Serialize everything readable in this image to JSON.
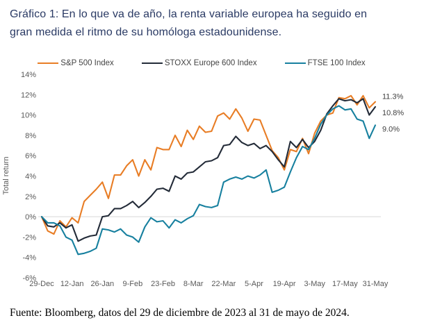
{
  "title_lines": [
    "Gráfico 1: En lo que va de año, la renta variable europea ha seguido en",
    "gran medida el ritmo de su homóloga estadounidense."
  ],
  "footer": "Fuente: Bloomberg, datos del 29 de diciembre de 2023 al 31 de mayo de 2024.",
  "colors": {
    "title_navy": "#2a3a64",
    "axis_text": "#595959",
    "end_label_text": "#3f3f3f",
    "zero_gridline": "#e2e2e2"
  },
  "chart_data": {
    "type": "line",
    "title": "",
    "ylabel": "Total return",
    "xlabel": "",
    "ylim": [
      -6,
      14
    ],
    "yticks": [
      14,
      12,
      10,
      8,
      6,
      4,
      2,
      0,
      -2,
      -4,
      -6
    ],
    "ytick_suffix": "%",
    "x_labels": [
      "29-Dec",
      "12-Jan",
      "26-Jan",
      "9-Feb",
      "23-Feb",
      "8-Mar",
      "22-Mar",
      "5-Apr",
      "19-Apr",
      "3-May",
      "17-May",
      "31-May"
    ],
    "x_span": "daily values from 29-Dec-2023 to 31-May-2024, evenly spaced",
    "grid": "horizontal zero-line only",
    "legend_position": "top",
    "series": [
      {
        "name": "S&P 500 Index",
        "color": "#e87d25",
        "end_label": "11.3%",
        "values": [
          0.0,
          -1.4,
          -1.7,
          -0.4,
          -1.0,
          -0.1,
          -0.6,
          1.5,
          2.1,
          2.7,
          3.4,
          1.8,
          4.1,
          4.1,
          5.0,
          5.6,
          4.0,
          5.6,
          4.6,
          6.8,
          6.6,
          6.6,
          8.0,
          6.9,
          8.5,
          7.6,
          8.9,
          8.3,
          8.4,
          9.9,
          10.2,
          9.6,
          10.6,
          9.7,
          8.4,
          9.6,
          9.5,
          8.0,
          6.5,
          5.8,
          4.6,
          6.6,
          6.4,
          7.7,
          6.2,
          8.2,
          9.4,
          10.0,
          10.2,
          11.7,
          11.6,
          11.9,
          11.0,
          11.9,
          10.7,
          11.3
        ]
      },
      {
        "name": "STOXX Europe 600 Index",
        "color": "#232b38",
        "end_label": "10.8%",
        "values": [
          0.0,
          -0.9,
          -1.0,
          -0.6,
          -1.1,
          -0.8,
          -2.4,
          -2.1,
          -1.9,
          -1.8,
          0.0,
          0.1,
          0.8,
          0.8,
          1.1,
          1.5,
          0.9,
          1.4,
          2.0,
          2.7,
          2.8,
          2.5,
          4.0,
          3.7,
          4.3,
          4.4,
          4.9,
          5.4,
          5.5,
          5.8,
          7.0,
          7.1,
          7.9,
          7.3,
          7.0,
          7.2,
          6.7,
          7.0,
          6.4,
          5.6,
          4.9,
          7.4,
          6.8,
          7.6,
          6.8,
          7.4,
          8.5,
          10.1,
          10.9,
          11.6,
          11.4,
          11.5,
          11.2,
          11.6,
          10.0,
          10.8
        ]
      },
      {
        "name": "FTSE 100 Index",
        "color": "#17809f",
        "end_label": "9.0%",
        "values": [
          0.0,
          -0.6,
          -0.6,
          -0.9,
          -2.0,
          -2.3,
          -3.7,
          -3.6,
          -3.4,
          -3.1,
          -1.2,
          -1.3,
          -1.5,
          -1.2,
          -1.8,
          -2.0,
          -2.5,
          -1.0,
          -0.1,
          -0.5,
          -0.4,
          -1.1,
          -0.3,
          -0.6,
          -0.2,
          0.1,
          1.2,
          1.0,
          0.9,
          1.1,
          3.4,
          3.7,
          3.9,
          3.7,
          4.0,
          3.8,
          4.1,
          4.6,
          2.4,
          2.6,
          2.9,
          4.4,
          5.8,
          6.9,
          6.6,
          7.7,
          9.1,
          10.0,
          10.6,
          10.9,
          10.5,
          10.6,
          9.6,
          9.4,
          7.7,
          9.0
        ]
      }
    ]
  }
}
